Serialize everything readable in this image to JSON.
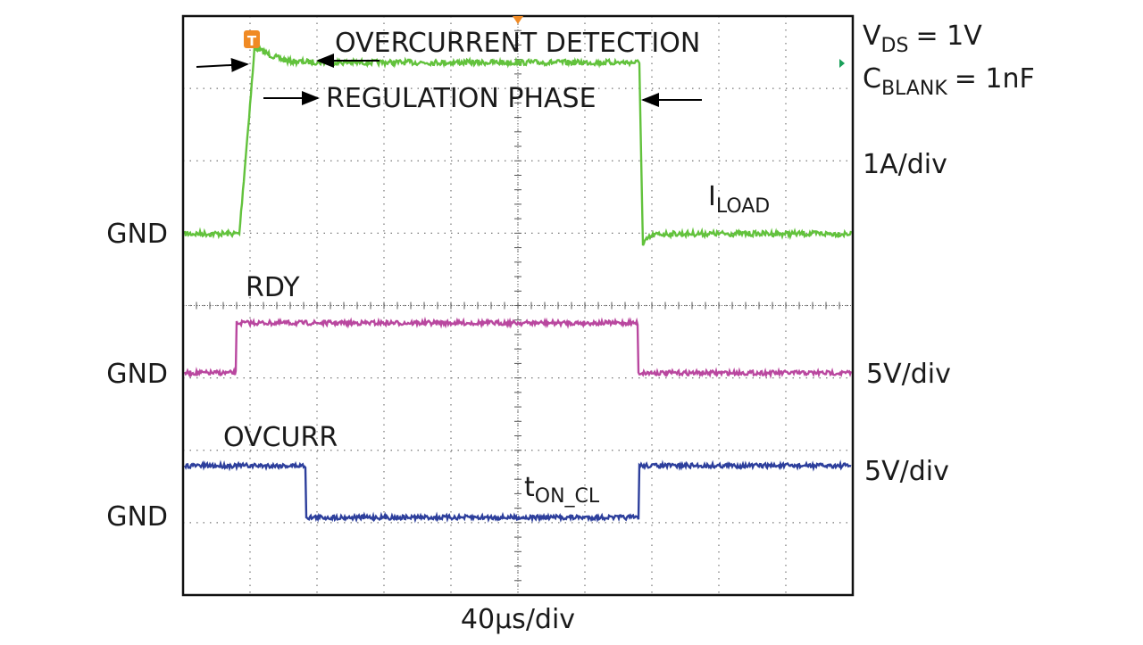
{
  "scope": {
    "trigger_marker": "T",
    "conditions": [
      {
        "symbol": "V",
        "subscript": "DS",
        "value": "= 1V"
      },
      {
        "symbol": "C",
        "subscript": "BLANK",
        "value": "= 1nF"
      }
    ],
    "annotations": {
      "overcurrent": "OVERCURRENT DETECTION",
      "regulation": "REGULATION PHASE"
    },
    "channels": [
      {
        "name": "I",
        "subscript": "LOAD",
        "scale": "1A/div",
        "ground": "GND"
      },
      {
        "name": "RDY",
        "scale": "5V/div",
        "ground": "GND"
      },
      {
        "name": "OVCURR",
        "scale": "5V/div",
        "ground": "GND"
      }
    ],
    "pulse_label": {
      "symbol": "t",
      "subscript": "ON_CL"
    },
    "time_scale": "40µs/div"
  }
}
